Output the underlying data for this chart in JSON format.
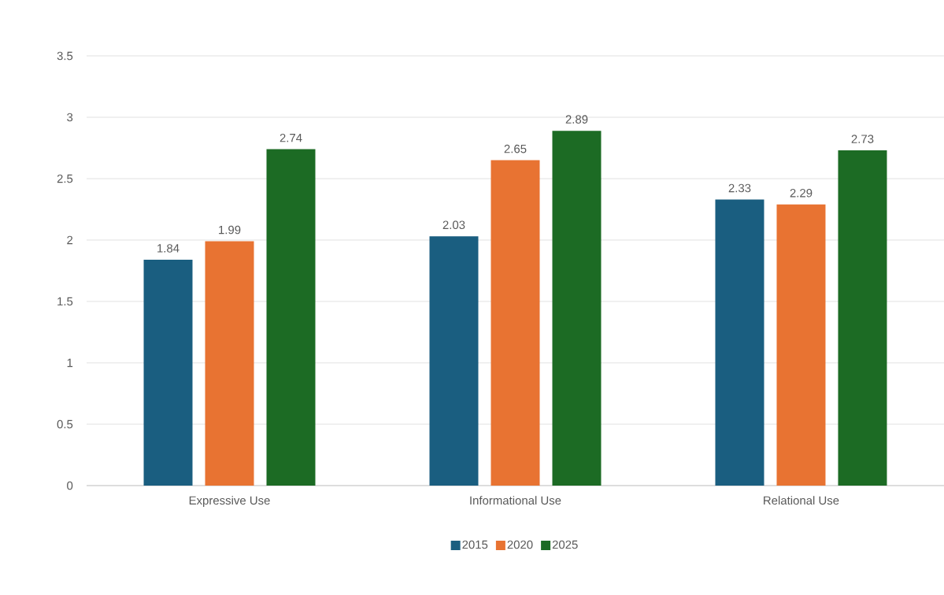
{
  "chart_data": {
    "type": "bar",
    "categories": [
      "Expressive Use",
      "Informational Use",
      "Relational Use"
    ],
    "series": [
      {
        "name": "2015",
        "color": "#1a5e80",
        "values": [
          1.84,
          2.03,
          2.33
        ]
      },
      {
        "name": "2020",
        "color": "#e87332",
        "values": [
          1.99,
          2.65,
          2.29
        ]
      },
      {
        "name": "2025",
        "color": "#1c6b24",
        "values": [
          2.74,
          2.89,
          2.73
        ]
      }
    ],
    "ylim": [
      0,
      3.5
    ],
    "yticks": [
      0,
      0.5,
      1,
      1.5,
      2,
      2.5,
      3,
      3.5
    ],
    "grid": "y",
    "legend": "bottom",
    "data_labels": true
  }
}
